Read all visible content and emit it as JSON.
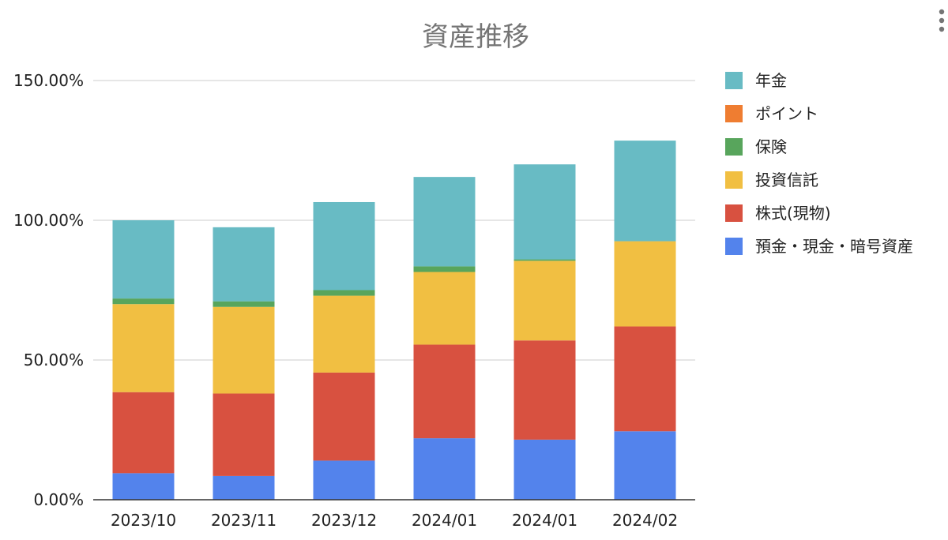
{
  "chart_data": {
    "type": "bar",
    "stacked": true,
    "title": "資産推移",
    "categories": [
      "2023/10",
      "2023/11",
      "2023/12",
      "2024/01",
      "2024/01",
      "2024/02"
    ],
    "y_ticks": [
      "0.00%",
      "50.00%",
      "100.00%",
      "150.00%"
    ],
    "ylim": [
      0,
      150
    ],
    "grid": true,
    "legend_position": "right",
    "series": [
      {
        "name": "預金・現金・暗号資産",
        "color": "#5383ec",
        "values": [
          9.5,
          8.5,
          14,
          22,
          21.5,
          24.5
        ]
      },
      {
        "name": "株式(現物)",
        "color": "#d85140",
        "values": [
          29,
          29.5,
          31.5,
          33.5,
          35.5,
          37.5
        ]
      },
      {
        "name": "投資信託",
        "color": "#f1bf42",
        "values": [
          31.5,
          31,
          27.5,
          26,
          28.5,
          30.5
        ]
      },
      {
        "name": "保険",
        "color": "#58a55c",
        "values": [
          2,
          2,
          2,
          2,
          0.5,
          0
        ]
      },
      {
        "name": "ポイント",
        "color": "#ef7d31",
        "values": [
          0,
          0,
          0,
          0,
          0,
          0
        ]
      },
      {
        "name": "年金",
        "color": "#68bbc4",
        "values": [
          28,
          26.5,
          31.5,
          32,
          34,
          36
        ]
      }
    ],
    "legend_order": [
      "年金",
      "ポイント",
      "保険",
      "投資信託",
      "株式(現物)",
      "預金・現金・暗号資産"
    ]
  }
}
